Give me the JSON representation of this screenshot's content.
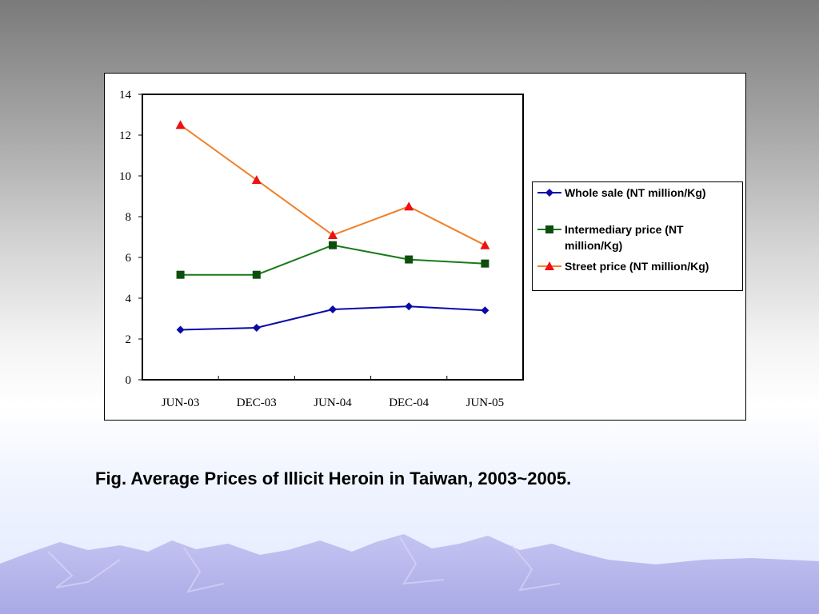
{
  "colors": {
    "whole_sale": "#0a0aa8",
    "intermediary": "#1a7a1a",
    "intermediary_marker": "#0d4d0d",
    "street_line": "#f07f28",
    "street_marker": "#ee1111",
    "mountain": "#b8b8ee"
  },
  "chart_data": {
    "type": "line",
    "title": "",
    "xlabel": "",
    "ylabel": "",
    "categories": [
      "JUN-03",
      "DEC-03",
      "JUN-04",
      "DEC-04",
      "JUN-05"
    ],
    "ylim": [
      0,
      14
    ],
    "yticks": [
      "0",
      "2",
      "4",
      "6",
      "8",
      "10",
      "12",
      "14"
    ],
    "grid": false,
    "legend_position": "right",
    "series": [
      {
        "name": "Whole sale (NT million/Kg)",
        "marker": "diamond",
        "values": [
          2.45,
          2.55,
          3.45,
          3.6,
          3.4
        ]
      },
      {
        "name": "Intermediary price (NT million/Kg)",
        "marker": "square",
        "values": [
          5.15,
          5.15,
          6.6,
          5.9,
          5.7
        ]
      },
      {
        "name": "Street price (NT million/Kg)",
        "marker": "triangle",
        "values": [
          12.5,
          9.8,
          7.1,
          8.5,
          6.6
        ]
      }
    ]
  },
  "legend": {
    "whole_sale": "Whole sale (NT million/Kg)",
    "intermediary_line1": "Intermediary price (NT",
    "intermediary_line2": "million/Kg)",
    "street": "Street price (NT million/Kg)"
  },
  "caption": "Fig.  Average Prices of Illicit Heroin in Taiwan, 2003~2005."
}
